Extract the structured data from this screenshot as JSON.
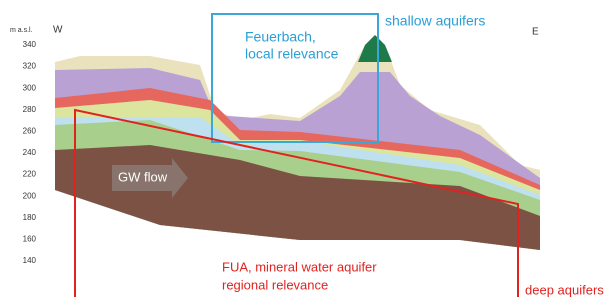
{
  "axis": {
    "label": "m a.s.l.",
    "ticks": [
      340,
      320,
      300,
      280,
      260,
      240,
      220,
      200,
      180,
      160,
      140
    ]
  },
  "directions": {
    "west": "W",
    "east": "E"
  },
  "callouts": {
    "local": {
      "lines": [
        "Feuerbach,",
        "local relevance"
      ]
    },
    "shallow": "shallow aquifers",
    "flow": "GW flow",
    "regional": {
      "lines": [
        "FUA, mineral water aquifer",
        "regional relevance"
      ]
    },
    "deep": "deep aquifers"
  }
}
